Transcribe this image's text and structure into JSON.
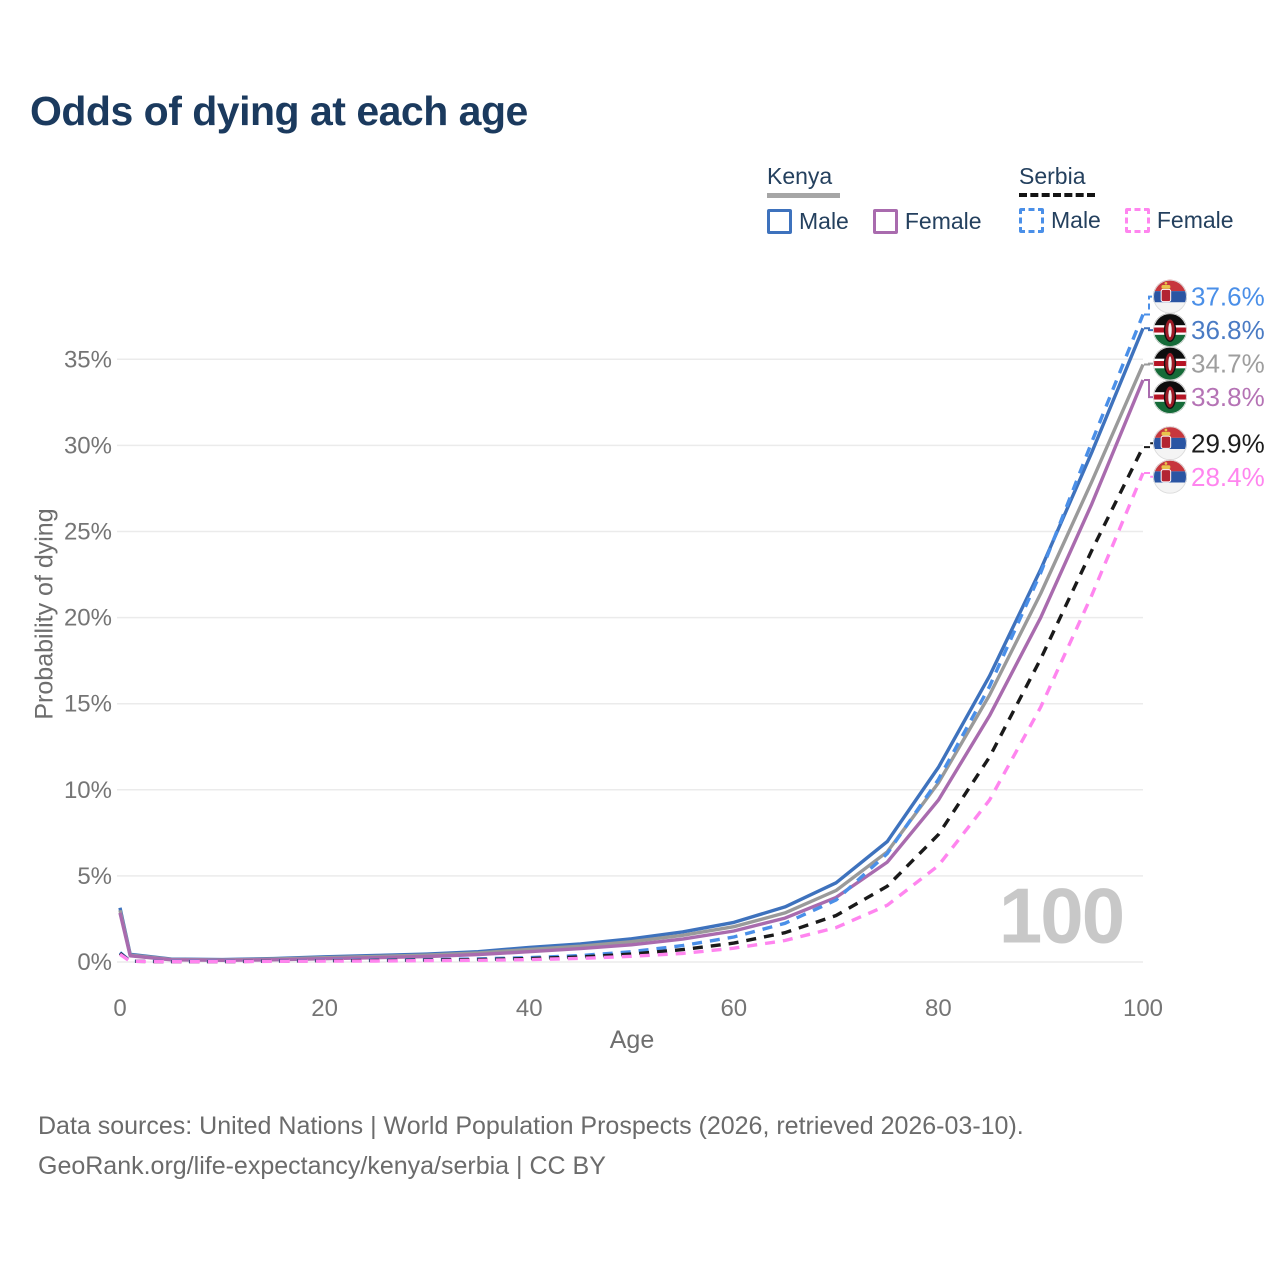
{
  "title": "Odds of dying at each age",
  "watermark": "100",
  "legend": {
    "groups": [
      {
        "label": "Kenya",
        "line_style": "solid",
        "underline_color": "#a6a6a6",
        "items": [
          {
            "label": "Male"
          },
          {
            "label": "Female"
          }
        ]
      },
      {
        "label": "Serbia",
        "line_style": "dashed",
        "underline_color": "#141414",
        "items": [
          {
            "label": "Male"
          },
          {
            "label": "Female"
          }
        ]
      }
    ]
  },
  "footer": {
    "line1": "Data sources: United Nations | World Population Prospects (2026, retrieved 2026-03-10).",
    "line2": "GeoRank.org/life-expectancy/kenya/serbia | CC BY"
  },
  "chart_data": {
    "type": "line",
    "title": "Odds of dying at each age",
    "xlabel": "Age",
    "ylabel": "Probability of dying",
    "xlim": [
      0,
      100
    ],
    "ylim_pct": [
      0,
      38.5
    ],
    "x_ticks": [
      0,
      20,
      40,
      60,
      80,
      100
    ],
    "y_ticks": [
      0,
      5,
      10,
      15,
      20,
      25,
      30,
      35
    ],
    "y_tick_suffix": "%",
    "grid": "horizontal-only",
    "legend_position": "top-right",
    "x": [
      0,
      1,
      5,
      10,
      15,
      20,
      25,
      30,
      35,
      40,
      45,
      50,
      55,
      60,
      65,
      70,
      75,
      80,
      85,
      90,
      95,
      100
    ],
    "series": [
      {
        "name": "Kenya Male",
        "country": "Kenya",
        "sex": "Male",
        "color": "#3e72bd",
        "label_color": "#4a7bc4",
        "dash": false,
        "flag": "kenya",
        "end_label": "36.8%",
        "values": [
          3.15,
          0.45,
          0.17,
          0.14,
          0.2,
          0.3,
          0.38,
          0.46,
          0.6,
          0.85,
          1.05,
          1.35,
          1.75,
          2.3,
          3.2,
          4.6,
          7.0,
          11.3,
          16.6,
          22.8,
          29.6,
          36.8
        ]
      },
      {
        "name": "Kenya Both sexes",
        "country": "Kenya",
        "sex": "Both",
        "color": "#9a9a9a",
        "label_color": "#9e9e9e",
        "dash": false,
        "flag": "kenya",
        "end_label": "34.7%",
        "values": [
          3.0,
          0.4,
          0.15,
          0.12,
          0.17,
          0.25,
          0.32,
          0.4,
          0.52,
          0.73,
          0.92,
          1.18,
          1.55,
          2.05,
          2.85,
          4.15,
          6.4,
          10.4,
          15.5,
          21.4,
          27.9,
          34.7
        ]
      },
      {
        "name": "Kenya Female",
        "country": "Kenya",
        "sex": "Female",
        "color": "#a96bae",
        "label_color": "#b573b5",
        "dash": false,
        "flag": "kenya",
        "end_label": "33.8%",
        "values": [
          2.85,
          0.36,
          0.13,
          0.1,
          0.13,
          0.19,
          0.25,
          0.32,
          0.43,
          0.6,
          0.78,
          1.0,
          1.33,
          1.8,
          2.55,
          3.75,
          5.8,
          9.4,
          14.3,
          20.0,
          26.6,
          33.8
        ]
      },
      {
        "name": "Serbia Male",
        "country": "Serbia",
        "sex": "Male",
        "color": "#4a8fe8",
        "label_color": "#4a8fe8",
        "dash": true,
        "flag": "serbia",
        "end_label": "37.6%",
        "values": [
          0.55,
          0.05,
          0.03,
          0.03,
          0.06,
          0.09,
          0.11,
          0.14,
          0.18,
          0.25,
          0.37,
          0.6,
          0.95,
          1.45,
          2.25,
          3.6,
          6.3,
          10.6,
          16.0,
          22.6,
          30.2,
          37.6
        ]
      },
      {
        "name": "Serbia Both sexes",
        "country": "Serbia",
        "sex": "Both",
        "color": "#1a1a1a",
        "label_color": "#1c1c1c",
        "dash": true,
        "flag": "serbia",
        "end_label": "29.9%",
        "values": [
          0.5,
          0.04,
          0.02,
          0.02,
          0.05,
          0.07,
          0.09,
          0.11,
          0.14,
          0.2,
          0.29,
          0.46,
          0.72,
          1.1,
          1.7,
          2.7,
          4.4,
          7.4,
          11.9,
          17.6,
          23.9,
          29.9
        ]
      },
      {
        "name": "Serbia Female",
        "country": "Serbia",
        "sex": "Female",
        "color": "#ff85ef",
        "label_color": "#ff85ef",
        "dash": true,
        "flag": "serbia",
        "end_label": "28.4%",
        "values": [
          0.45,
          0.04,
          0.02,
          0.02,
          0.04,
          0.05,
          0.06,
          0.08,
          0.1,
          0.14,
          0.21,
          0.33,
          0.5,
          0.8,
          1.25,
          2.0,
          3.3,
          5.6,
          9.4,
          14.8,
          21.3,
          28.4
        ]
      }
    ]
  }
}
